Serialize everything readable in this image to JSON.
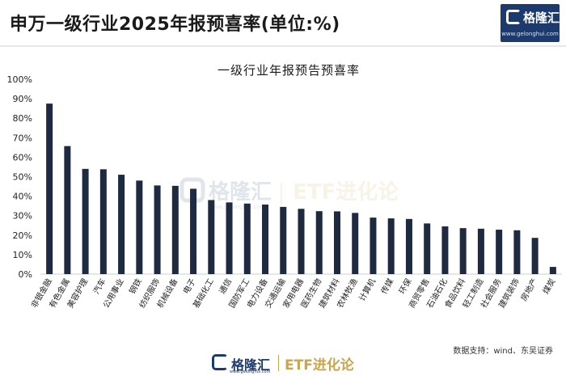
{
  "header": {
    "title": "申万一级行业2025年报预喜率(单位:%)",
    "logo_text": "格隆汇",
    "logo_url": "www.gelonghui.com"
  },
  "watermark": {
    "brand": "格隆汇",
    "separator": "|",
    "etf_text": "ETF进化论",
    "url": "www.gelonghui.com"
  },
  "footer": {
    "source": "数据支持：wind、东吴证券",
    "brand": "格隆汇",
    "etf_text": "ETF进化论",
    "url": "www.gelonghui.com"
  },
  "colors": {
    "bar": "#1e2a3f",
    "brand_blue": "#1c3a6e",
    "brand_gold": "#c9a54b"
  },
  "chart_data": {
    "type": "bar",
    "title": "一级行业年报预告预喜率",
    "xlabel": "",
    "ylabel": "",
    "ylim": [
      0,
      100
    ],
    "y_ticks": [
      "0%",
      "10%",
      "20%",
      "30%",
      "40%",
      "50%",
      "60%",
      "70%",
      "80%",
      "90%",
      "100%"
    ],
    "grid": false,
    "categories": [
      "非银金融",
      "有色金属",
      "美容护理",
      "汽车",
      "公用事业",
      "钢铁",
      "纺织服饰",
      "机械设备",
      "电子",
      "基础化工",
      "通信",
      "国防军工",
      "电力设备",
      "交通运输",
      "家用电器",
      "医药生物",
      "建筑材料",
      "农林牧渔",
      "计算机",
      "传媒",
      "环保",
      "商贸零售",
      "石油石化",
      "食品饮料",
      "轻工制造",
      "社会服务",
      "建筑装饰",
      "房地产",
      "煤炭"
    ],
    "values": [
      87.5,
      65.7,
      54.0,
      53.8,
      51.0,
      48.0,
      45.5,
      45.3,
      43.8,
      38.0,
      36.8,
      36.2,
      35.7,
      34.5,
      33.5,
      32.3,
      32.2,
      31.4,
      29.0,
      28.6,
      28.3,
      26.0,
      24.5,
      23.6,
      23.3,
      22.8,
      22.5,
      18.6,
      3.7
    ]
  }
}
